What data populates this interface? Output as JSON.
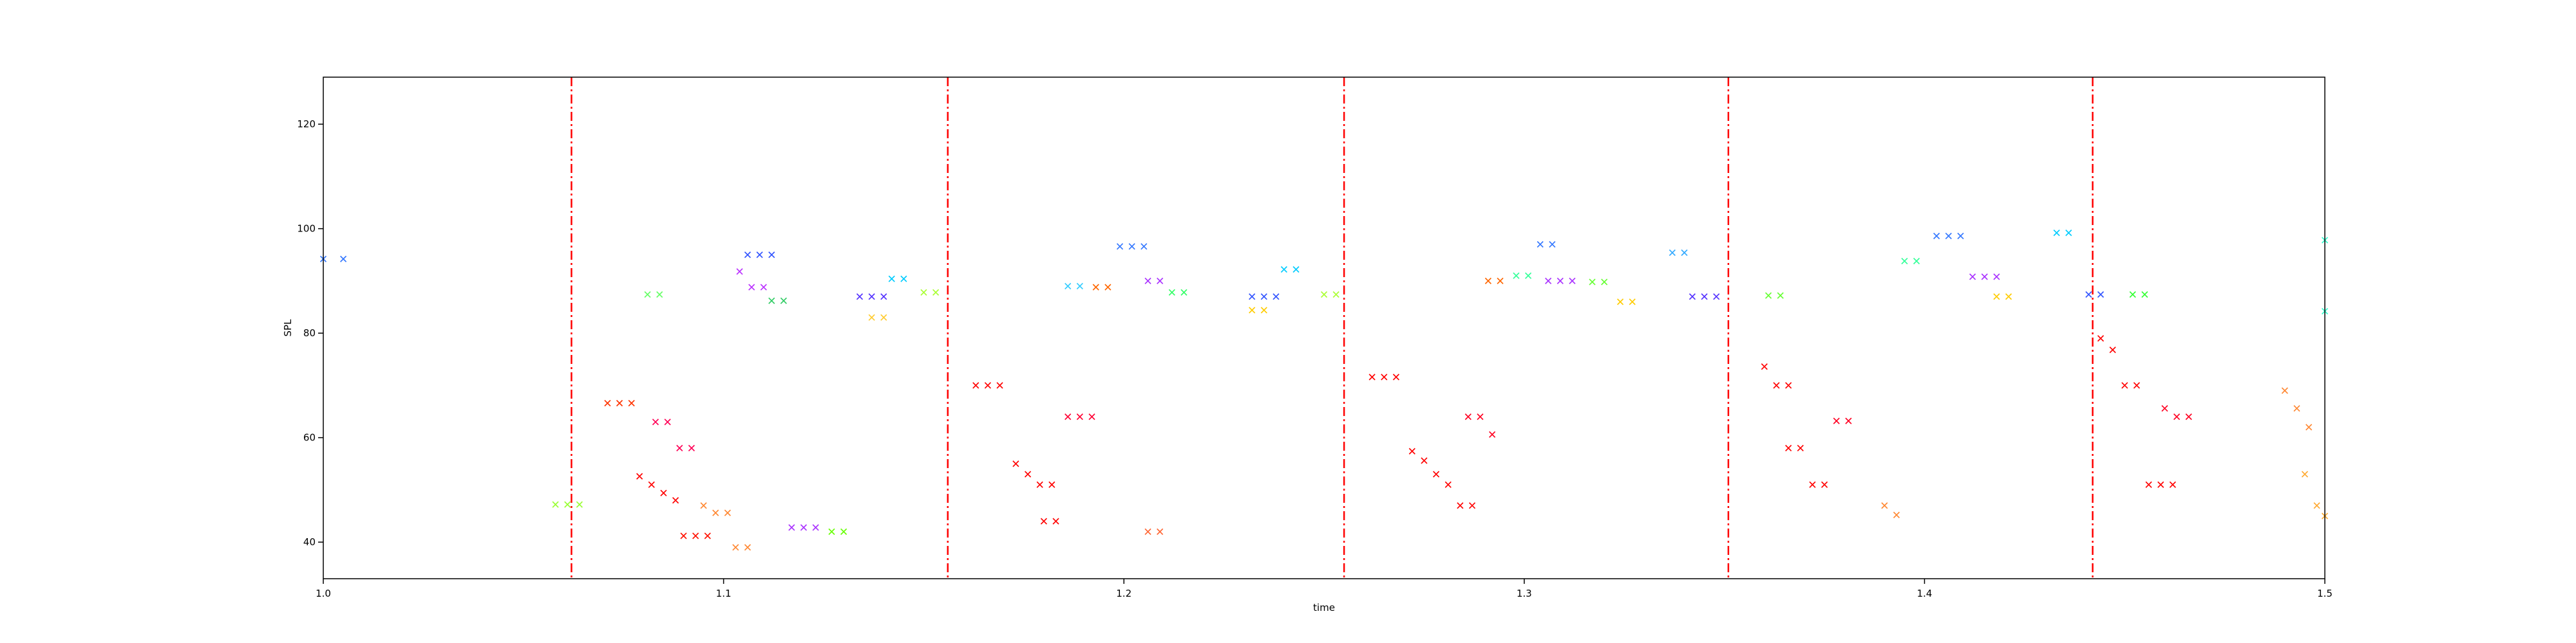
{
  "chart_data": {
    "type": "scatter",
    "title": "",
    "xlabel": "time",
    "ylabel": "SPL",
    "xlim": [
      1.0,
      1.5
    ],
    "ylim": [
      33,
      129
    ],
    "x_ticks": [
      1.0,
      1.1,
      1.2,
      1.3,
      1.4,
      1.5
    ],
    "x_tick_labels": [
      "1.0",
      "1.1",
      "1.2",
      "1.3",
      "1.4",
      "1.5"
    ],
    "y_ticks": [
      40,
      60,
      80,
      100,
      120
    ],
    "y_tick_labels": [
      "40",
      "60",
      "80",
      "100",
      "120"
    ],
    "grid": false,
    "legend": "none",
    "marker": "x",
    "colormap": "hsv (rainbow) by note pitch",
    "segment_boundaries_x": [
      1.062,
      1.156,
      1.255,
      1.351,
      1.442
    ],
    "boundary_color": "#ff0000",
    "boundary_style": "dash-dot",
    "series": [
      {
        "color": "#3377ff",
        "points": [
          [
            1.0,
            94.2
          ],
          [
            1.005,
            94.2
          ]
        ]
      },
      {
        "color": "#99ff33",
        "points": [
          [
            1.058,
            47.2
          ],
          [
            1.061,
            47.2
          ],
          [
            1.064,
            47.2
          ]
        ]
      },
      {
        "color": "#ff3300",
        "points": [
          [
            1.071,
            66.6
          ],
          [
            1.074,
            66.6
          ],
          [
            1.077,
            66.6
          ]
        ]
      },
      {
        "color": "#ff0000",
        "points": [
          [
            1.079,
            52.6
          ],
          [
            1.082,
            51.0
          ],
          [
            1.085,
            49.4
          ],
          [
            1.088,
            48.0
          ]
        ]
      },
      {
        "color": "#ff0055",
        "points": [
          [
            1.083,
            63.0
          ],
          [
            1.086,
            63.0
          ],
          [
            1.089,
            58.0
          ],
          [
            1.092,
            58.0
          ]
        ]
      },
      {
        "color": "#66ff66",
        "points": [
          [
            1.081,
            87.4
          ],
          [
            1.084,
            87.4
          ]
        ]
      },
      {
        "color": "#ff1100",
        "points": [
          [
            1.09,
            41.2
          ],
          [
            1.093,
            41.2
          ],
          [
            1.096,
            41.2
          ]
        ]
      },
      {
        "color": "#ff8833",
        "points": [
          [
            1.095,
            47.0
          ],
          [
            1.098,
            45.6
          ],
          [
            1.101,
            45.6
          ]
        ]
      },
      {
        "color": "#ff8833",
        "points": [
          [
            1.103,
            39.0
          ],
          [
            1.106,
            39.0
          ]
        ]
      },
      {
        "color": "#bb33ff",
        "points": [
          [
            1.104,
            91.8
          ],
          [
            1.107,
            88.8
          ],
          [
            1.11,
            88.8
          ]
        ]
      },
      {
        "color": "#3355ff",
        "points": [
          [
            1.106,
            95.0
          ],
          [
            1.109,
            95.0
          ],
          [
            1.112,
            95.0
          ]
        ]
      },
      {
        "color": "#33cc66",
        "points": [
          [
            1.112,
            86.2
          ],
          [
            1.115,
            86.2
          ]
        ]
      },
      {
        "color": "#66ff00",
        "points": [
          [
            1.127,
            42.0
          ],
          [
            1.13,
            42.0
          ]
        ]
      },
      {
        "color": "#5533ff",
        "points": [
          [
            1.134,
            87.0
          ],
          [
            1.137,
            87.0
          ],
          [
            1.14,
            87.0
          ]
        ]
      },
      {
        "color": "#00ccff",
        "points": [
          [
            1.142,
            90.4
          ],
          [
            1.145,
            90.4
          ]
        ]
      },
      {
        "color": "#aaff33",
        "points": [
          [
            1.15,
            87.8
          ],
          [
            1.153,
            87.8
          ]
        ]
      },
      {
        "color": "#ffcc33",
        "points": [
          [
            1.137,
            83.0
          ],
          [
            1.14,
            83.0
          ]
        ]
      },
      {
        "color": "#aa33ff",
        "points": [
          [
            1.117,
            42.8
          ],
          [
            1.12,
            42.8
          ],
          [
            1.123,
            42.8
          ]
        ]
      },
      {
        "color": "#ff0000",
        "points": [
          [
            1.163,
            70.0
          ],
          [
            1.166,
            70.0
          ],
          [
            1.169,
            70.0
          ]
        ]
      },
      {
        "color": "#ff0000",
        "points": [
          [
            1.173,
            55.0
          ],
          [
            1.176,
            53.0
          ],
          [
            1.179,
            51.0
          ],
          [
            1.182,
            51.0
          ]
        ]
      },
      {
        "color": "#ff0000",
        "points": [
          [
            1.18,
            44.0
          ],
          [
            1.183,
            44.0
          ]
        ]
      },
      {
        "color": "#ff0033",
        "points": [
          [
            1.186,
            64.0
          ],
          [
            1.189,
            64.0
          ],
          [
            1.192,
            64.0
          ]
        ]
      },
      {
        "color": "#33ccff",
        "points": [
          [
            1.186,
            89.0
          ],
          [
            1.189,
            89.0
          ]
        ]
      },
      {
        "color": "#ff6600",
        "points": [
          [
            1.193,
            88.8
          ],
          [
            1.196,
            88.8
          ]
        ]
      },
      {
        "color": "#3377ff",
        "points": [
          [
            1.199,
            96.6
          ],
          [
            1.202,
            96.6
          ],
          [
            1.205,
            96.6
          ]
        ]
      },
      {
        "color": "#aa33ff",
        "points": [
          [
            1.206,
            90.0
          ],
          [
            1.209,
            90.0
          ]
        ]
      },
      {
        "color": "#33ff66",
        "points": [
          [
            1.212,
            87.8
          ],
          [
            1.215,
            87.8
          ]
        ]
      },
      {
        "color": "#ff6633",
        "points": [
          [
            1.206,
            42.0
          ],
          [
            1.209,
            42.0
          ]
        ]
      },
      {
        "color": "#3355ff",
        "points": [
          [
            1.232,
            87.0
          ],
          [
            1.235,
            87.0
          ],
          [
            1.238,
            87.0
          ]
        ]
      },
      {
        "color": "#00ccff",
        "points": [
          [
            1.24,
            92.2
          ],
          [
            1.243,
            92.2
          ]
        ]
      },
      {
        "color": "#ffcc00",
        "points": [
          [
            1.232,
            84.4
          ],
          [
            1.235,
            84.4
          ]
        ]
      },
      {
        "color": "#aaff33",
        "points": [
          [
            1.25,
            87.4
          ],
          [
            1.253,
            87.4
          ]
        ]
      },
      {
        "color": "#ff0000",
        "points": [
          [
            1.262,
            71.6
          ],
          [
            1.265,
            71.6
          ],
          [
            1.268,
            71.6
          ]
        ]
      },
      {
        "color": "#ff0000",
        "points": [
          [
            1.272,
            57.4
          ],
          [
            1.275,
            55.6
          ],
          [
            1.278,
            53.0
          ],
          [
            1.281,
            51.0
          ]
        ]
      },
      {
        "color": "#ff0000",
        "points": [
          [
            1.284,
            47.0
          ],
          [
            1.287,
            47.0
          ]
        ]
      },
      {
        "color": "#ff0022",
        "points": [
          [
            1.286,
            64.0
          ],
          [
            1.289,
            64.0
          ],
          [
            1.292,
            60.6
          ]
        ]
      },
      {
        "color": "#ff6600",
        "points": [
          [
            1.291,
            90.0
          ],
          [
            1.294,
            90.0
          ]
        ]
      },
      {
        "color": "#33ff99",
        "points": [
          [
            1.298,
            91.0
          ],
          [
            1.301,
            91.0
          ]
        ]
      },
      {
        "color": "#3377ff",
        "points": [
          [
            1.304,
            97.0
          ],
          [
            1.307,
            97.0
          ]
        ]
      },
      {
        "color": "#aa33ff",
        "points": [
          [
            1.306,
            90.0
          ],
          [
            1.309,
            90.0
          ],
          [
            1.312,
            90.0
          ]
        ]
      },
      {
        "color": "#66ff33",
        "points": [
          [
            1.317,
            89.8
          ],
          [
            1.32,
            89.8
          ]
        ]
      },
      {
        "color": "#ffcc00",
        "points": [
          [
            1.324,
            86.0
          ],
          [
            1.327,
            86.0
          ]
        ]
      },
      {
        "color": "#33aaff",
        "points": [
          [
            1.337,
            95.4
          ],
          [
            1.34,
            95.4
          ]
        ]
      },
      {
        "color": "#5533ff",
        "points": [
          [
            1.342,
            87.0
          ],
          [
            1.345,
            87.0
          ],
          [
            1.348,
            87.0
          ]
        ]
      },
      {
        "color": "#ff0000",
        "points": [
          [
            1.36,
            73.6
          ],
          [
            1.363,
            70.0
          ],
          [
            1.366,
            70.0
          ]
        ]
      },
      {
        "color": "#ff0000",
        "points": [
          [
            1.366,
            58.0
          ],
          [
            1.369,
            58.0
          ],
          [
            1.372,
            51.0
          ],
          [
            1.375,
            51.0
          ]
        ]
      },
      {
        "color": "#ff0022",
        "points": [
          [
            1.378,
            63.2
          ],
          [
            1.381,
            63.2
          ]
        ]
      },
      {
        "color": "#66ff33",
        "points": [
          [
            1.361,
            87.2
          ],
          [
            1.364,
            87.2
          ]
        ]
      },
      {
        "color": "#ff8833",
        "points": [
          [
            1.39,
            47.0
          ],
          [
            1.393,
            45.2
          ]
        ]
      },
      {
        "color": "#33ff99",
        "points": [
          [
            1.395,
            93.8
          ],
          [
            1.398,
            93.8
          ]
        ]
      },
      {
        "color": "#3377ff",
        "points": [
          [
            1.403,
            98.6
          ],
          [
            1.406,
            98.6
          ],
          [
            1.409,
            98.6
          ]
        ]
      },
      {
        "color": "#aa33ff",
        "points": [
          [
            1.412,
            90.8
          ],
          [
            1.415,
            90.8
          ],
          [
            1.418,
            90.8
          ]
        ]
      },
      {
        "color": "#ffcc00",
        "points": [
          [
            1.418,
            87.0
          ],
          [
            1.421,
            87.0
          ]
        ]
      },
      {
        "color": "#00ccff",
        "points": [
          [
            1.433,
            99.2
          ],
          [
            1.436,
            99.2
          ]
        ]
      },
      {
        "color": "#3355ff",
        "points": [
          [
            1.441,
            87.4
          ],
          [
            1.444,
            87.4
          ]
        ]
      },
      {
        "color": "#ff0000",
        "points": [
          [
            1.444,
            79.0
          ],
          [
            1.447,
            76.8
          ],
          [
            1.45,
            70.0
          ],
          [
            1.453,
            70.0
          ]
        ]
      },
      {
        "color": "#ff0000",
        "points": [
          [
            1.456,
            51.0
          ],
          [
            1.459,
            51.0
          ],
          [
            1.462,
            51.0
          ]
        ]
      },
      {
        "color": "#ff0022",
        "points": [
          [
            1.46,
            65.6
          ],
          [
            1.463,
            64.0
          ],
          [
            1.466,
            64.0
          ]
        ]
      },
      {
        "color": "#33ff33",
        "points": [
          [
            1.452,
            87.4
          ],
          [
            1.455,
            87.4
          ]
        ]
      },
      {
        "color": "#ff8833",
        "points": [
          [
            1.49,
            69.0
          ],
          [
            1.493,
            65.6
          ],
          [
            1.496,
            62.0
          ]
        ]
      },
      {
        "color": "#ffaa33",
        "points": [
          [
            1.495,
            53.0
          ],
          [
            1.498,
            47.0
          ],
          [
            1.5,
            45.0
          ]
        ]
      },
      {
        "color": "#33ffcc",
        "points": [
          [
            1.5,
            97.8
          ],
          [
            1.5,
            84.2
          ]
        ]
      }
    ]
  }
}
